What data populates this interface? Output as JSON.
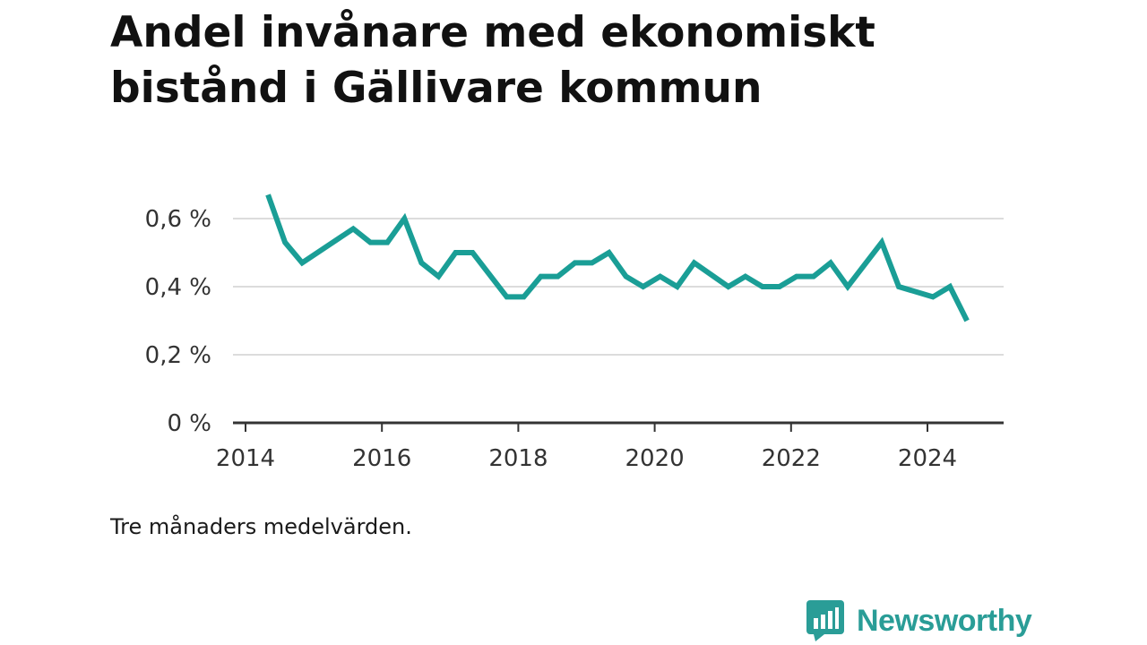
{
  "title": "Andel invånare med ekonomiskt bistånd i Gällivare kommun",
  "note": "Tre månaders medelvärden.",
  "brand": {
    "name": "Newsworthy",
    "color": "#2a9d97",
    "icon": "bar-chart-speech-bubble-icon"
  },
  "chart_data": {
    "type": "line",
    "title": "Andel invånare med ekonomiskt bistånd i Gällivare kommun",
    "xlabel": "",
    "ylabel": "",
    "xlim": [
      2014,
      2025.1
    ],
    "ylim": [
      0,
      0.7
    ],
    "y_ticks": [
      {
        "value": 0,
        "label": "0 %"
      },
      {
        "value": 0.2,
        "label": "0,2 %"
      },
      {
        "value": 0.4,
        "label": "0,4 %"
      },
      {
        "value": 0.6,
        "label": "0,6 %"
      }
    ],
    "x_ticks": [
      {
        "value": 2014,
        "label": "2014"
      },
      {
        "value": 2016,
        "label": "2016"
      },
      {
        "value": 2018,
        "label": "2018"
      },
      {
        "value": 2020,
        "label": "2020"
      },
      {
        "value": 2022,
        "label": "2022"
      },
      {
        "value": 2024,
        "label": "2024"
      }
    ],
    "grid": true,
    "line_color": "#1a9e96",
    "series": [
      {
        "points": [
          [
            2014.33,
            0.67
          ],
          [
            2014.58,
            0.53
          ],
          [
            2014.83,
            0.47
          ],
          [
            2015.58,
            0.57
          ],
          [
            2015.83,
            0.53
          ],
          [
            2016.08,
            0.53
          ],
          [
            2016.33,
            0.6
          ],
          [
            2016.58,
            0.47
          ],
          [
            2016.83,
            0.43
          ],
          [
            2017.08,
            0.5
          ],
          [
            2017.33,
            0.5
          ],
          [
            2017.83,
            0.37
          ],
          [
            2018.08,
            0.37
          ],
          [
            2018.33,
            0.43
          ],
          [
            2018.58,
            0.43
          ],
          [
            2018.83,
            0.47
          ],
          [
            2019.08,
            0.47
          ],
          [
            2019.33,
            0.5
          ],
          [
            2019.58,
            0.43
          ],
          [
            2019.83,
            0.4
          ],
          [
            2020.08,
            0.43
          ],
          [
            2020.33,
            0.4
          ],
          [
            2020.58,
            0.47
          ],
          [
            2021.08,
            0.4
          ],
          [
            2021.33,
            0.43
          ],
          [
            2021.58,
            0.4
          ],
          [
            2021.83,
            0.4
          ],
          [
            2022.08,
            0.43
          ],
          [
            2022.33,
            0.43
          ],
          [
            2022.58,
            0.47
          ],
          [
            2022.83,
            0.4
          ],
          [
            2023.33,
            0.53
          ],
          [
            2023.58,
            0.4
          ],
          [
            2024.08,
            0.37
          ],
          [
            2024.33,
            0.4
          ],
          [
            2024.58,
            0.3
          ]
        ]
      }
    ]
  }
}
